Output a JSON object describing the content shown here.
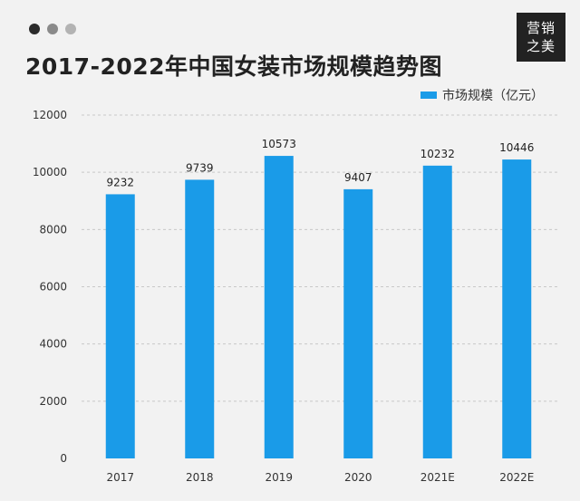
{
  "window_dots": [
    {
      "name": "dot-dark",
      "color": "#2b2b2b"
    },
    {
      "name": "dot-mid",
      "color": "#8a8a8a"
    },
    {
      "name": "dot-light",
      "color": "#b3b3b3"
    }
  ],
  "logo": {
    "line1": "营销",
    "line2": "之美"
  },
  "colors": {
    "bar": "#1a9be8",
    "grid": "#c8c8c8",
    "background": "#f2f2f2"
  },
  "chart_data": {
    "type": "bar",
    "title": "2017-2022年中国女装市场规模趋势图",
    "categories": [
      "2017",
      "2018",
      "2019",
      "2020",
      "2021E",
      "2022E"
    ],
    "series": [
      {
        "name": "市场规模（亿元）",
        "values": [
          9232,
          9739,
          10573,
          9407,
          10232,
          10446
        ]
      }
    ],
    "data_labels": [
      "9232",
      "9739",
      "10573",
      "9407",
      "10232",
      "10446"
    ],
    "y_ticks": [
      "0",
      "2000",
      "4000",
      "6000",
      "8000",
      "10000",
      "12000"
    ],
    "ylim": [
      0,
      12000
    ],
    "xlabel": "",
    "ylabel": "",
    "grid": true,
    "legend_position": "top-right"
  }
}
